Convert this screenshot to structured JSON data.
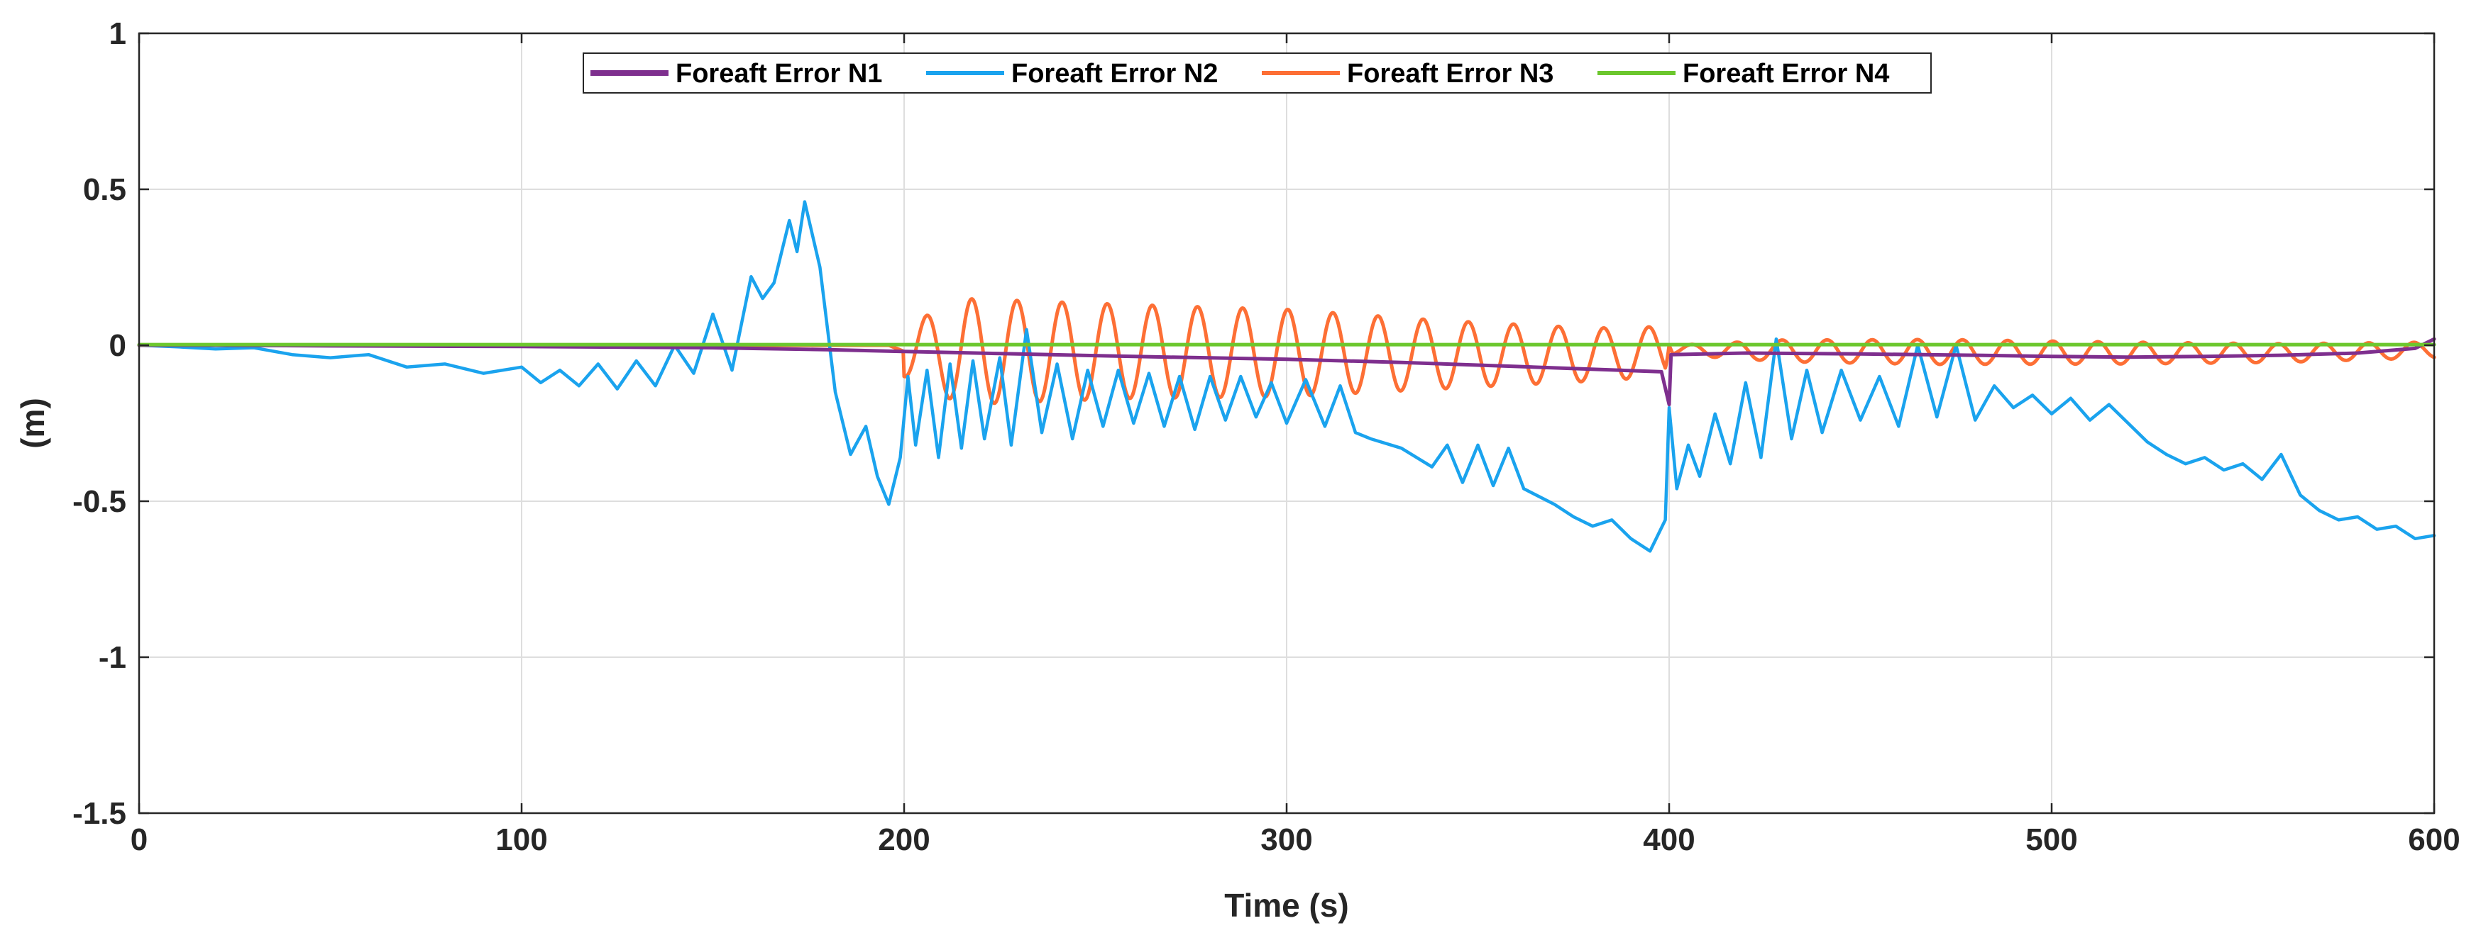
{
  "chart_data": {
    "type": "line",
    "title": "",
    "xlabel": "Time (s)",
    "ylabel": "(m)",
    "xlim": [
      0,
      600
    ],
    "ylim": [
      -1.5,
      1
    ],
    "xticks": [
      0,
      100,
      200,
      300,
      400,
      500,
      600
    ],
    "yticks": [
      1,
      0.5,
      0,
      -0.5,
      -1,
      -1.5
    ],
    "xtick_labels": [
      "0",
      "100",
      "200",
      "300",
      "400",
      "500",
      "600"
    ],
    "ytick_labels": [
      "1",
      "0.5",
      "0",
      "-0.5",
      "-1",
      "-1.5"
    ],
    "grid": true,
    "legend_position": "top-center",
    "series": [
      {
        "name": "Foreaft Error N1",
        "color": "#7e2f8e",
        "points": [
          [
            0,
            0
          ],
          [
            20,
            0
          ],
          [
            50,
            -0.002
          ],
          [
            100,
            -0.004
          ],
          [
            150,
            -0.008
          ],
          [
            180,
            -0.014
          ],
          [
            200,
            -0.02
          ],
          [
            230,
            -0.028
          ],
          [
            260,
            -0.036
          ],
          [
            300,
            -0.045
          ],
          [
            330,
            -0.055
          ],
          [
            360,
            -0.068
          ],
          [
            398,
            -0.085
          ],
          [
            400,
            -0.19
          ],
          [
            400.5,
            -0.03
          ],
          [
            420,
            -0.025
          ],
          [
            450,
            -0.028
          ],
          [
            480,
            -0.032
          ],
          [
            500,
            -0.036
          ],
          [
            520,
            -0.038
          ],
          [
            540,
            -0.036
          ],
          [
            560,
            -0.032
          ],
          [
            580,
            -0.025
          ],
          [
            595,
            -0.01
          ],
          [
            600,
            0.02
          ]
        ]
      },
      {
        "name": "Foreaft Error N2",
        "color": "#1aa3ee",
        "points": [
          [
            0,
            0
          ],
          [
            10,
            -0.005
          ],
          [
            20,
            -0.012
          ],
          [
            30,
            -0.008
          ],
          [
            40,
            -0.03
          ],
          [
            50,
            -0.04
          ],
          [
            60,
            -0.03
          ],
          [
            70,
            -0.07
          ],
          [
            80,
            -0.06
          ],
          [
            90,
            -0.09
          ],
          [
            100,
            -0.07
          ],
          [
            105,
            -0.12
          ],
          [
            110,
            -0.08
          ],
          [
            115,
            -0.13
          ],
          [
            120,
            -0.06
          ],
          [
            125,
            -0.14
          ],
          [
            130,
            -0.05
          ],
          [
            135,
            -0.13
          ],
          [
            140,
            0.0
          ],
          [
            145,
            -0.09
          ],
          [
            150,
            0.1
          ],
          [
            155,
            -0.08
          ],
          [
            160,
            0.22
          ],
          [
            163,
            0.15
          ],
          [
            166,
            0.2
          ],
          [
            170,
            0.4
          ],
          [
            172,
            0.3
          ],
          [
            174,
            0.46
          ],
          [
            178,
            0.25
          ],
          [
            182,
            -0.15
          ],
          [
            186,
            -0.35
          ],
          [
            190,
            -0.26
          ],
          [
            193,
            -0.42
          ],
          [
            196,
            -0.51
          ],
          [
            199,
            -0.36
          ],
          [
            201,
            -0.1
          ],
          [
            203,
            -0.32
          ],
          [
            206,
            -0.08
          ],
          [
            209,
            -0.36
          ],
          [
            212,
            -0.06
          ],
          [
            215,
            -0.33
          ],
          [
            218,
            -0.05
          ],
          [
            221,
            -0.3
          ],
          [
            225,
            -0.04
          ],
          [
            228,
            -0.32
          ],
          [
            232,
            0.05
          ],
          [
            236,
            -0.28
          ],
          [
            240,
            -0.06
          ],
          [
            244,
            -0.3
          ],
          [
            248,
            -0.08
          ],
          [
            252,
            -0.26
          ],
          [
            256,
            -0.08
          ],
          [
            260,
            -0.25
          ],
          [
            264,
            -0.09
          ],
          [
            268,
            -0.26
          ],
          [
            272,
            -0.1
          ],
          [
            276,
            -0.27
          ],
          [
            280,
            -0.1
          ],
          [
            284,
            -0.24
          ],
          [
            288,
            -0.1
          ],
          [
            292,
            -0.23
          ],
          [
            296,
            -0.12
          ],
          [
            300,
            -0.25
          ],
          [
            305,
            -0.11
          ],
          [
            310,
            -0.26
          ],
          [
            314,
            -0.13
          ],
          [
            318,
            -0.28
          ],
          [
            322,
            -0.3
          ],
          [
            330,
            -0.33
          ],
          [
            338,
            -0.39
          ],
          [
            342,
            -0.32
          ],
          [
            346,
            -0.44
          ],
          [
            350,
            -0.32
          ],
          [
            354,
            -0.45
          ],
          [
            358,
            -0.33
          ],
          [
            362,
            -0.46
          ],
          [
            370,
            -0.51
          ],
          [
            375,
            -0.55
          ],
          [
            380,
            -0.58
          ],
          [
            385,
            -0.56
          ],
          [
            390,
            -0.62
          ],
          [
            395,
            -0.66
          ],
          [
            399,
            -0.56
          ],
          [
            400,
            -0.2
          ],
          [
            402,
            -0.46
          ],
          [
            405,
            -0.32
          ],
          [
            408,
            -0.42
          ],
          [
            412,
            -0.22
          ],
          [
            416,
            -0.38
          ],
          [
            420,
            -0.12
          ],
          [
            424,
            -0.36
          ],
          [
            428,
            0.02
          ],
          [
            432,
            -0.3
          ],
          [
            436,
            -0.08
          ],
          [
            440,
            -0.28
          ],
          [
            445,
            -0.08
          ],
          [
            450,
            -0.24
          ],
          [
            455,
            -0.1
          ],
          [
            460,
            -0.26
          ],
          [
            465,
            0.0
          ],
          [
            470,
            -0.23
          ],
          [
            475,
            0.0
          ],
          [
            480,
            -0.24
          ],
          [
            485,
            -0.13
          ],
          [
            490,
            -0.2
          ],
          [
            495,
            -0.16
          ],
          [
            500,
            -0.22
          ],
          [
            505,
            -0.17
          ],
          [
            510,
            -0.24
          ],
          [
            515,
            -0.19
          ],
          [
            520,
            -0.25
          ],
          [
            525,
            -0.31
          ],
          [
            530,
            -0.35
          ],
          [
            535,
            -0.38
          ],
          [
            540,
            -0.36
          ],
          [
            545,
            -0.4
          ],
          [
            550,
            -0.38
          ],
          [
            555,
            -0.43
          ],
          [
            560,
            -0.35
          ],
          [
            565,
            -0.48
          ],
          [
            570,
            -0.53
          ],
          [
            575,
            -0.56
          ],
          [
            580,
            -0.55
          ],
          [
            585,
            -0.59
          ],
          [
            590,
            -0.58
          ],
          [
            595,
            -0.62
          ],
          [
            600,
            -0.61
          ]
        ]
      },
      {
        "name": "Foreaft Error N3",
        "color": "#fd6f35",
        "amplitude_points": [
          [
            0,
            0
          ],
          [
            196,
            0
          ],
          [
            200,
            0.08
          ],
          [
            215,
            0.17
          ],
          [
            260,
            0.15
          ],
          [
            300,
            0.14
          ],
          [
            340,
            0.11
          ],
          [
            380,
            0.085
          ],
          [
            399,
            0.08
          ],
          [
            400,
            0.0
          ],
          [
            401,
            0.015
          ],
          [
            430,
            0.035
          ],
          [
            470,
            0.04
          ],
          [
            520,
            0.035
          ],
          [
            560,
            0.03
          ],
          [
            600,
            0.025
          ]
        ],
        "center_points": [
          [
            0,
            0
          ],
          [
            196,
            0
          ],
          [
            200,
            -0.02
          ],
          [
            260,
            -0.02
          ],
          [
            300,
            -0.025
          ],
          [
            340,
            -0.03
          ],
          [
            380,
            -0.03
          ],
          [
            399,
            -0.02
          ],
          [
            400,
            0.0
          ],
          [
            401,
            -0.015
          ],
          [
            450,
            -0.02
          ],
          [
            520,
            -0.025
          ],
          [
            560,
            -0.025
          ],
          [
            600,
            -0.015
          ]
        ],
        "period_s": 11.8
      },
      {
        "name": "Foreaft Error N4",
        "color": "#6cc72e",
        "points": [
          [
            0,
            0.002
          ],
          [
            100,
            0.002
          ],
          [
            200,
            0.002
          ],
          [
            300,
            0.002
          ],
          [
            400,
            0.002
          ],
          [
            500,
            0.002
          ],
          [
            600,
            0.002
          ]
        ]
      }
    ]
  }
}
